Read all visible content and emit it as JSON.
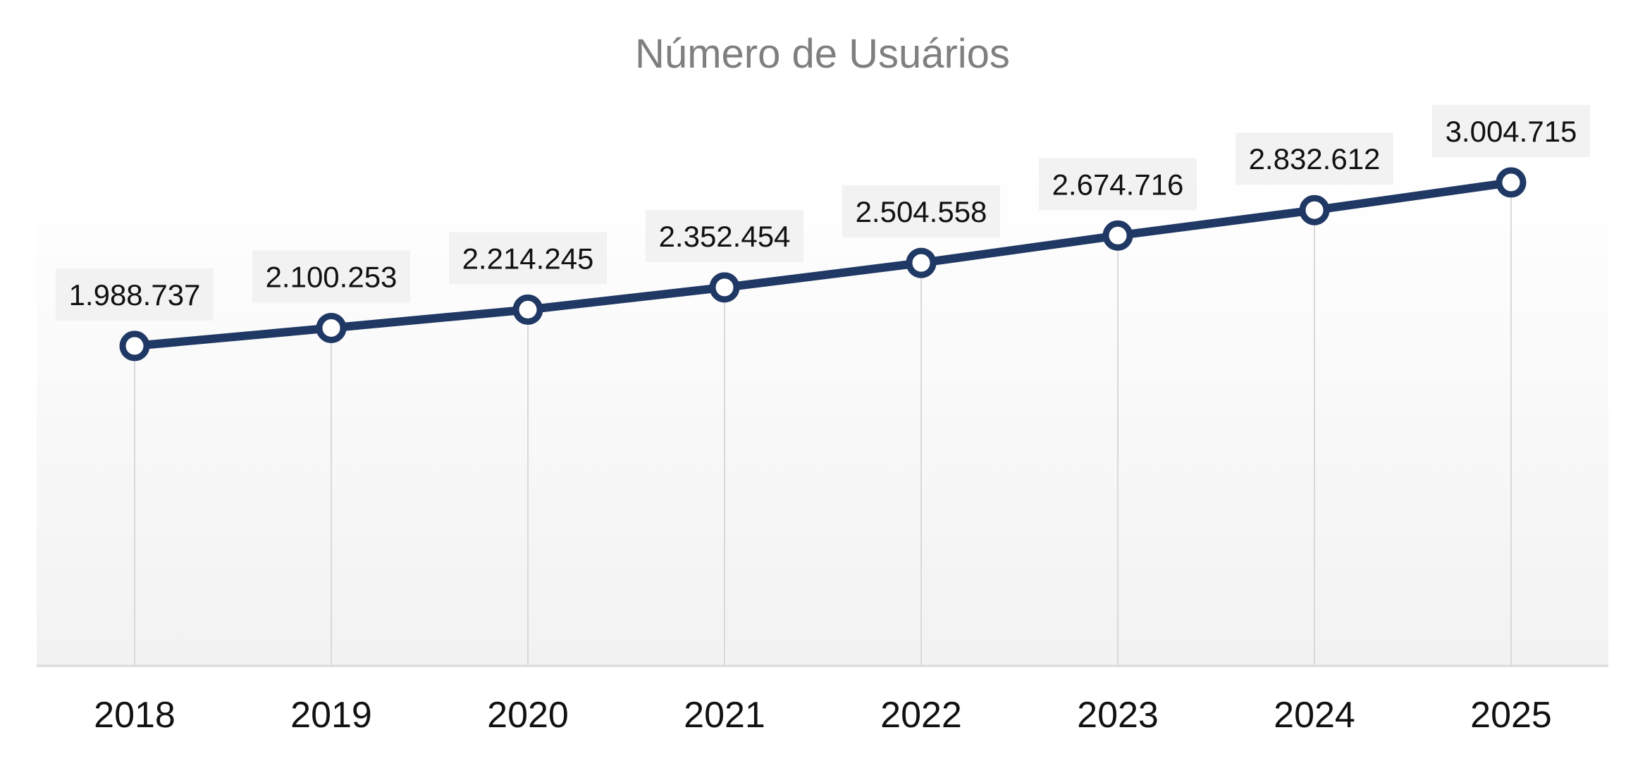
{
  "chart_data": {
    "type": "line",
    "title": "Número de Usuários",
    "xlabel": "",
    "ylabel": "",
    "categories": [
      "2018",
      "2019",
      "2020",
      "2021",
      "2022",
      "2023",
      "2024",
      "2025"
    ],
    "values": [
      1988737,
      2100253,
      2214245,
      2352454,
      2504558,
      2674716,
      2832612,
      3004715
    ],
    "data_labels": [
      "1.988.737",
      "2.100.253",
      "2.214.245",
      "2.352.454",
      "2.504.558",
      "2.674.716",
      "2.832.612",
      "3.004.715"
    ],
    "ylim": [
      0,
      3000000
    ],
    "grid": "vertical drop lines",
    "legend": "none",
    "colors": {
      "line": "#1f3864",
      "marker_fill": "#ffffff",
      "label_background": "#f2f2f2",
      "drop_line": "#d9d9d9",
      "axis": "#d9d9d9",
      "plot_gradient_top": "#ffffff",
      "plot_gradient_bottom": "#f2f2f2",
      "title": "#7f7f7f"
    }
  }
}
